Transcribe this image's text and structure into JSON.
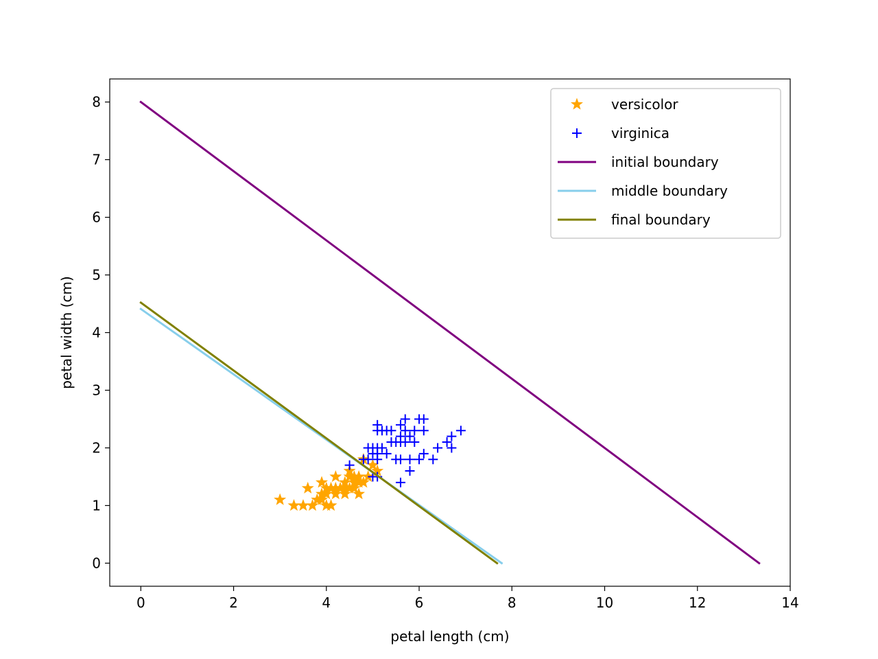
{
  "chart_data": {
    "type": "scatter",
    "title": "",
    "xlabel": "petal length (cm)",
    "ylabel": "petal width (cm)",
    "xlim": [
      -0.67,
      14.0
    ],
    "ylim": [
      -0.4,
      8.4
    ],
    "xticks": [
      0,
      2,
      4,
      6,
      8,
      10,
      12,
      14
    ],
    "yticks": [
      0,
      1,
      2,
      3,
      4,
      5,
      6,
      7,
      8
    ],
    "grid": false,
    "legend_position": "top-right",
    "series": [
      {
        "name": "versicolor",
        "kind": "scatter",
        "marker": "star",
        "color": "#ffa500",
        "points": [
          [
            3.0,
            1.1
          ],
          [
            3.3,
            1.0
          ],
          [
            3.5,
            1.0
          ],
          [
            3.6,
            1.3
          ],
          [
            3.7,
            1.0
          ],
          [
            3.8,
            1.1
          ],
          [
            3.9,
            1.1
          ],
          [
            3.9,
            1.2
          ],
          [
            3.9,
            1.4
          ],
          [
            4.0,
            1.0
          ],
          [
            4.0,
            1.2
          ],
          [
            4.0,
            1.3
          ],
          [
            4.1,
            1.0
          ],
          [
            4.1,
            1.3
          ],
          [
            4.2,
            1.2
          ],
          [
            4.2,
            1.3
          ],
          [
            4.2,
            1.5
          ],
          [
            4.3,
            1.3
          ],
          [
            4.4,
            1.2
          ],
          [
            4.4,
            1.3
          ],
          [
            4.4,
            1.4
          ],
          [
            4.5,
            1.3
          ],
          [
            4.5,
            1.5
          ],
          [
            4.5,
            1.6
          ],
          [
            4.6,
            1.3
          ],
          [
            4.6,
            1.4
          ],
          [
            4.6,
            1.5
          ],
          [
            4.7,
            1.2
          ],
          [
            4.7,
            1.4
          ],
          [
            4.7,
            1.5
          ],
          [
            4.8,
            1.4
          ],
          [
            4.8,
            1.8
          ],
          [
            4.9,
            1.5
          ],
          [
            5.0,
            1.7
          ],
          [
            5.1,
            1.6
          ]
        ]
      },
      {
        "name": "virginica",
        "kind": "scatter",
        "marker": "plus",
        "color": "#0000ff",
        "points": [
          [
            4.5,
            1.7
          ],
          [
            4.8,
            1.8
          ],
          [
            4.9,
            1.8
          ],
          [
            4.9,
            2.0
          ],
          [
            5.0,
            1.5
          ],
          [
            5.0,
            1.9
          ],
          [
            5.0,
            2.0
          ],
          [
            5.1,
            1.5
          ],
          [
            5.1,
            1.8
          ],
          [
            5.1,
            1.9
          ],
          [
            5.1,
            2.0
          ],
          [
            5.1,
            2.3
          ],
          [
            5.1,
            2.4
          ],
          [
            5.2,
            2.0
          ],
          [
            5.2,
            2.3
          ],
          [
            5.3,
            1.9
          ],
          [
            5.3,
            2.3
          ],
          [
            5.4,
            2.1
          ],
          [
            5.4,
            2.3
          ],
          [
            5.5,
            1.8
          ],
          [
            5.5,
            2.1
          ],
          [
            5.6,
            1.4
          ],
          [
            5.6,
            1.8
          ],
          [
            5.6,
            2.1
          ],
          [
            5.6,
            2.2
          ],
          [
            5.6,
            2.4
          ],
          [
            5.7,
            2.1
          ],
          [
            5.7,
            2.3
          ],
          [
            5.7,
            2.5
          ],
          [
            5.8,
            1.6
          ],
          [
            5.8,
            1.8
          ],
          [
            5.8,
            2.2
          ],
          [
            5.9,
            2.1
          ],
          [
            5.9,
            2.3
          ],
          [
            6.0,
            1.8
          ],
          [
            6.0,
            2.5
          ],
          [
            6.1,
            1.9
          ],
          [
            6.1,
            2.3
          ],
          [
            6.1,
            2.5
          ],
          [
            6.3,
            1.8
          ],
          [
            6.4,
            2.0
          ],
          [
            6.6,
            2.1
          ],
          [
            6.7,
            2.0
          ],
          [
            6.7,
            2.2
          ],
          [
            6.9,
            2.3
          ]
        ]
      },
      {
        "name": "initial boundary",
        "kind": "line",
        "color": "#800080",
        "points": [
          [
            0,
            8.0
          ],
          [
            13.33,
            0.0
          ]
        ]
      },
      {
        "name": "middle boundary",
        "kind": "line",
        "color": "#87ceeb",
        "points": [
          [
            0,
            4.41
          ],
          [
            7.78,
            0.0
          ]
        ]
      },
      {
        "name": "final boundary",
        "kind": "line",
        "color": "#808000",
        "points": [
          [
            0,
            4.52
          ],
          [
            7.68,
            0.0
          ]
        ]
      }
    ]
  }
}
